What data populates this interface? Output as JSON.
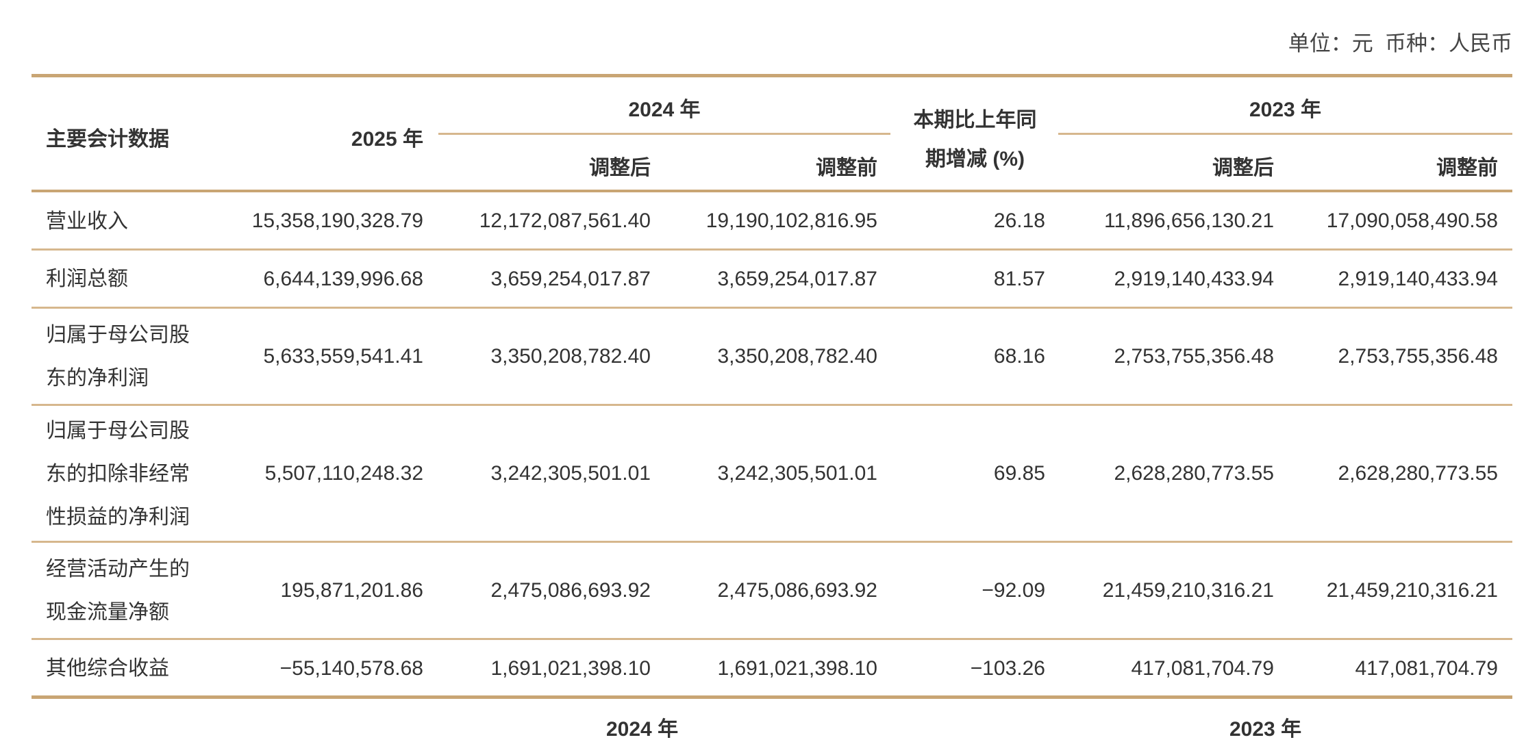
{
  "unit_note": "单位：元  币种：人民币",
  "header": {
    "item": "主要会计数据",
    "y2025": "2025 年",
    "y2024": "2024 年",
    "yoy_line1": "本期比上年同",
    "yoy_line2": "期增减 (%)",
    "y2023": "2023 年",
    "adjusted_after": "调整后",
    "adjusted_before": "调整前"
  },
  "rows": [
    {
      "label": "营业收入",
      "v2025": "15,358,190,328.79",
      "v2024_after": "12,172,087,561.40",
      "v2024_before": "19,190,102,816.95",
      "yoy": "26.18",
      "v2023_after": "11,896,656,130.21",
      "v2023_before": "17,090,058,490.58"
    },
    {
      "label": "利润总额",
      "v2025": "6,644,139,996.68",
      "v2024_after": "3,659,254,017.87",
      "v2024_before": "3,659,254,017.87",
      "yoy": "81.57",
      "v2023_after": "2,919,140,433.94",
      "v2023_before": "2,919,140,433.94"
    },
    {
      "label": "归属于母公司股东的净利润",
      "v2025": "5,633,559,541.41",
      "v2024_after": "3,350,208,782.40",
      "v2024_before": "3,350,208,782.40",
      "yoy": "68.16",
      "v2023_after": "2,753,755,356.48",
      "v2023_before": "2,753,755,356.48"
    },
    {
      "label": "归属于母公司股东的扣除非经常性损益的净利润",
      "v2025": "5,507,110,248.32",
      "v2024_after": "3,242,305,501.01",
      "v2024_before": "3,242,305,501.01",
      "yoy": "69.85",
      "v2023_after": "2,628,280,773.55",
      "v2023_before": "2,628,280,773.55"
    },
    {
      "label": "经营活动产生的现金流量净额",
      "v2025": "195,871,201.86",
      "v2024_after": "2,475,086,693.92",
      "v2024_before": "2,475,086,693.92",
      "yoy": "−92.09",
      "v2023_after": "21,459,210,316.21",
      "v2023_before": "21,459,210,316.21"
    },
    {
      "label": "其他综合收益",
      "v2025": "−55,140,578.68",
      "v2024_after": "1,691,021,398.10",
      "v2024_before": "1,691,021,398.10",
      "yoy": "−103.26",
      "v2023_after": "417,081,704.79",
      "v2023_before": "417,081,704.79"
    }
  ],
  "next_table_header": {
    "y2024": "2024 年",
    "y2023": "2023 年"
  },
  "colors": {
    "rule": "#c9a574",
    "text": "#333333"
  }
}
